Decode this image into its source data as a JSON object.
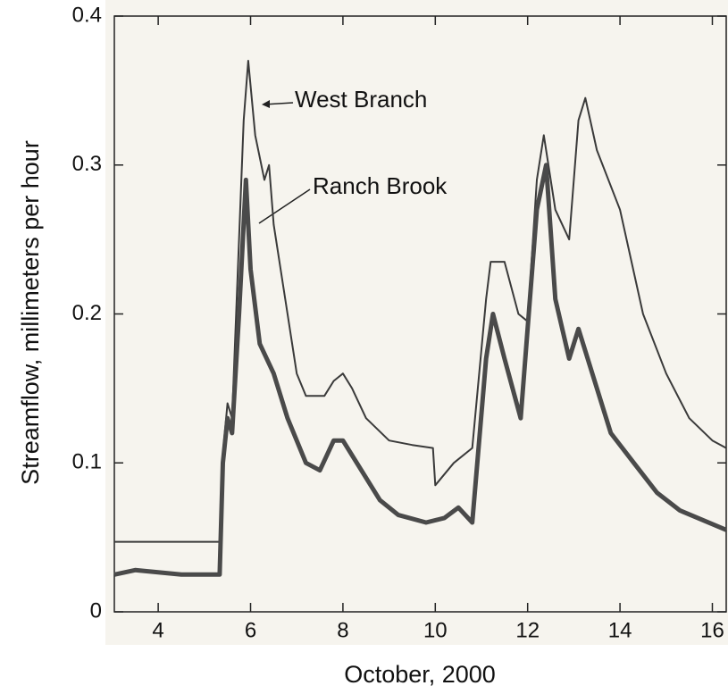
{
  "chart_data": {
    "type": "line",
    "x_label": "October, 2000",
    "y_label": "Streamflow, millimeters per hour",
    "xlim": [
      3.05,
      16.3
    ],
    "xticks": [
      4,
      6,
      8,
      10,
      12,
      14,
      16
    ],
    "ylim": [
      0,
      0.4
    ],
    "yticks": [
      0,
      0.1,
      0.2,
      0.3,
      0.4
    ],
    "grid": false,
    "annotations": [
      "West Branch",
      "Ranch Brook"
    ],
    "series": [
      {
        "name": "West Branch",
        "color": "#3a3a3a",
        "x": [
          3.05,
          5.33,
          5.38,
          5.5,
          5.6,
          5.75,
          5.85,
          5.95,
          6.1,
          6.3,
          6.4,
          6.5,
          6.8,
          7.0,
          7.2,
          7.6,
          7.8,
          8.0,
          8.2,
          8.5,
          9.0,
          9.5,
          9.95,
          10.0,
          10.4,
          10.8,
          11.1,
          11.2,
          11.5,
          11.8,
          12.0,
          12.2,
          12.35,
          12.6,
          12.9,
          13.1,
          13.25,
          13.5,
          14.0,
          14.5,
          15.0,
          15.5,
          16.0,
          16.3
        ],
        "values": [
          0.047,
          0.047,
          0.1,
          0.14,
          0.13,
          0.25,
          0.33,
          0.37,
          0.32,
          0.29,
          0.3,
          0.26,
          0.2,
          0.16,
          0.145,
          0.145,
          0.155,
          0.16,
          0.15,
          0.13,
          0.115,
          0.112,
          0.11,
          0.085,
          0.1,
          0.11,
          0.21,
          0.235,
          0.235,
          0.2,
          0.195,
          0.29,
          0.32,
          0.27,
          0.25,
          0.33,
          0.345,
          0.31,
          0.27,
          0.2,
          0.16,
          0.13,
          0.115,
          0.11
        ]
      },
      {
        "name": "Ranch Brook",
        "color": "#4a4a4a",
        "x": [
          3.05,
          3.5,
          4.5,
          5.33,
          5.4,
          5.5,
          5.6,
          5.75,
          5.9,
          6.0,
          6.2,
          6.5,
          6.8,
          7.2,
          7.5,
          7.8,
          8.0,
          8.4,
          8.8,
          9.2,
          9.8,
          10.2,
          10.5,
          10.8,
          11.1,
          11.25,
          11.5,
          11.85,
          12.2,
          12.4,
          12.6,
          12.9,
          13.1,
          13.3,
          13.8,
          14.3,
          14.8,
          15.3,
          16.3
        ],
        "values": [
          0.025,
          0.028,
          0.025,
          0.025,
          0.1,
          0.13,
          0.12,
          0.2,
          0.29,
          0.23,
          0.18,
          0.16,
          0.13,
          0.1,
          0.095,
          0.115,
          0.115,
          0.095,
          0.075,
          0.065,
          0.06,
          0.063,
          0.07,
          0.06,
          0.17,
          0.2,
          0.17,
          0.13,
          0.27,
          0.3,
          0.21,
          0.17,
          0.19,
          0.17,
          0.12,
          0.1,
          0.08,
          0.068,
          0.055
        ]
      }
    ]
  }
}
